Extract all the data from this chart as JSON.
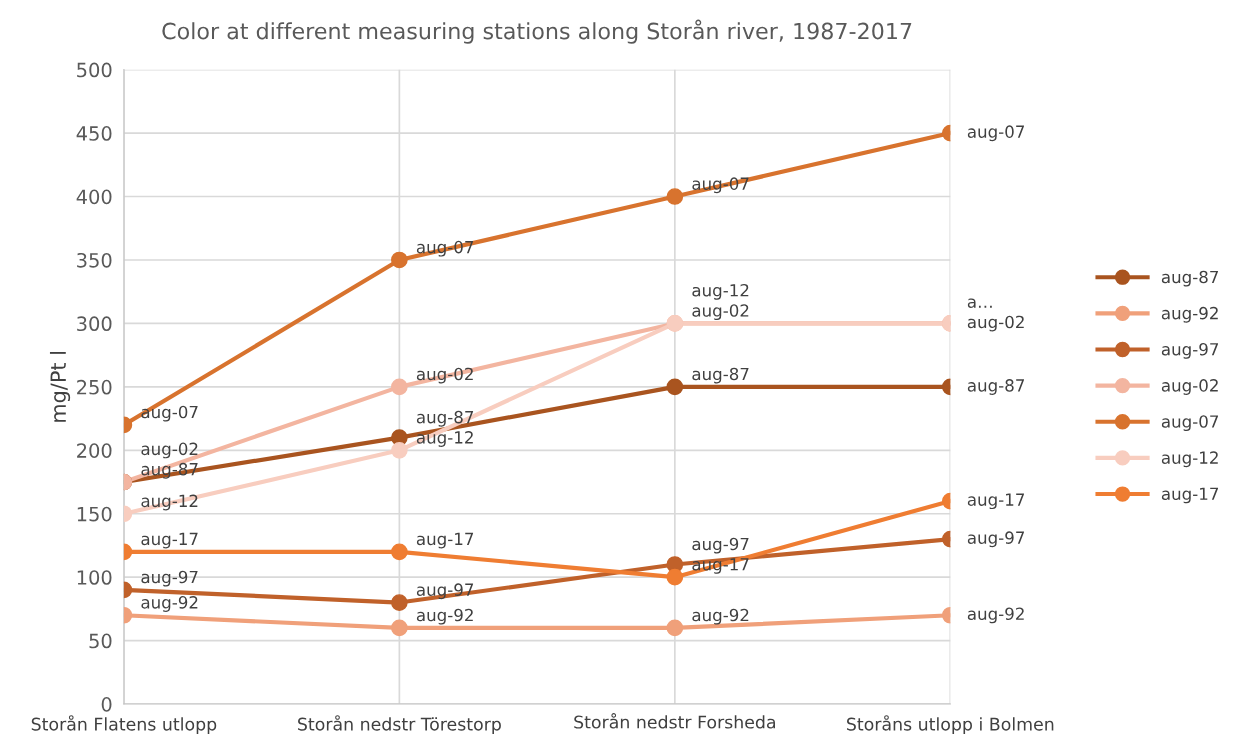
{
  "chart_data": {
    "type": "line",
    "title": "Color at different measuring stations along Storån river, 1987-2017",
    "ylabel": "mg/Pt l",
    "categories": [
      "Storån Flatens utlopp",
      "Storån nedstr Törestorp",
      "Storån nedstr Forsheda",
      "Storåns utlopp i Bolmen"
    ],
    "series": [
      {
        "name": "aug-87",
        "color": "#a9541f",
        "values": [
          175,
          210,
          250,
          250
        ],
        "value_labels": [
          "aug-87",
          "aug-87",
          "aug-87",
          "aug-87"
        ]
      },
      {
        "name": "aug-92",
        "color": "#f0a07a",
        "values": [
          70,
          60,
          60,
          70
        ],
        "value_labels": [
          "aug-92",
          "aug-92",
          "aug-92",
          "aug-92"
        ]
      },
      {
        "name": "aug-97",
        "color": "#c0612a",
        "values": [
          90,
          80,
          110,
          130
        ],
        "value_labels": [
          "aug-97",
          "aug-97",
          "aug-97",
          "aug-97"
        ]
      },
      {
        "name": "aug-02",
        "color": "#f3b5a0",
        "values": [
          175,
          250,
          300,
          300
        ],
        "value_labels": [
          "aug-02",
          "aug-02",
          "aug-02",
          "aug-02"
        ]
      },
      {
        "name": "aug-07",
        "color": "#d8732e",
        "values": [
          220,
          350,
          400,
          450
        ],
        "value_labels": [
          "aug-07",
          "aug-07",
          "aug-07",
          "aug-07"
        ]
      },
      {
        "name": "aug-12",
        "color": "#f8cdbf",
        "values": [
          150,
          200,
          300,
          300
        ],
        "value_labels": [
          "aug-12",
          "aug-12",
          "aug-12",
          "a…"
        ]
      },
      {
        "name": "aug-17",
        "color": "#ef7d32",
        "values": [
          120,
          120,
          100,
          160
        ],
        "value_labels": [
          "aug-17",
          "aug-17",
          "aug-17",
          "aug-17"
        ]
      }
    ],
    "ylim": [
      0,
      500
    ],
    "yticks": [
      0,
      50,
      100,
      150,
      200,
      250,
      300,
      350,
      400,
      450,
      500
    ],
    "grid": true,
    "legend": "right",
    "marker": "circle",
    "line_style": "solid"
  }
}
